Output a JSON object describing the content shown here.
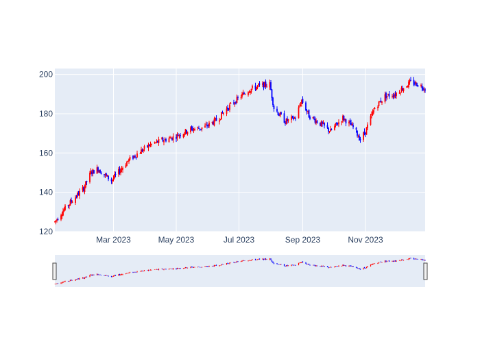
{
  "chart_data": {
    "type": "candlestick",
    "title": "",
    "xlabel": "",
    "ylabel": "",
    "ylim": [
      120,
      203
    ],
    "xlim": [
      "2023-01-03",
      "2023-12-29"
    ],
    "grid": true,
    "has_rangeslider": true,
    "colors": {
      "increasing": "#ff0000",
      "decreasing": "#0000ff",
      "plot_bg": "#e5ecf6",
      "grid": "#ffffff",
      "tick_text": "#2a3f5f",
      "slider_handle_fill": "#f2f2f2",
      "slider_handle_stroke": "#444444"
    },
    "y_ticks": [
      120,
      140,
      160,
      180,
      200
    ],
    "x_ticks": [
      {
        "date": "2023-03-01",
        "label": "Mar 2023"
      },
      {
        "date": "2023-05-01",
        "label": "May 2023"
      },
      {
        "date": "2023-07-01",
        "label": "Jul 2023"
      },
      {
        "date": "2023-09-01",
        "label": "Sep 2023"
      },
      {
        "date": "2023-11-01",
        "label": "Nov 2023"
      }
    ],
    "close_anchors": [
      [
        "2023-01-03",
        125
      ],
      [
        "2023-01-10",
        130
      ],
      [
        "2023-01-20",
        136
      ],
      [
        "2023-01-31",
        142
      ],
      [
        "2023-02-07",
        150
      ],
      [
        "2023-02-14",
        152
      ],
      [
        "2023-02-20",
        149
      ],
      [
        "2023-02-27",
        146
      ],
      [
        "2023-03-07",
        151
      ],
      [
        "2023-03-15",
        156
      ],
      [
        "2023-03-25",
        160
      ],
      [
        "2023-04-05",
        164
      ],
      [
        "2023-04-15",
        166
      ],
      [
        "2023-04-28",
        168
      ],
      [
        "2023-05-15",
        172
      ],
      [
        "2023-05-28",
        173
      ],
      [
        "2023-06-10",
        177
      ],
      [
        "2023-06-20",
        183
      ],
      [
        "2023-07-01",
        188
      ],
      [
        "2023-07-10",
        192
      ],
      [
        "2023-07-20",
        194
      ],
      [
        "2023-07-31",
        195
      ],
      [
        "2023-08-04",
        183
      ],
      [
        "2023-08-15",
        176
      ],
      [
        "2023-08-25",
        178
      ],
      [
        "2023-08-31",
        187
      ],
      [
        "2023-09-07",
        179
      ],
      [
        "2023-09-18",
        175
      ],
      [
        "2023-09-28",
        171
      ],
      [
        "2023-10-10",
        178
      ],
      [
        "2023-10-20",
        173
      ],
      [
        "2023-10-27",
        167
      ],
      [
        "2023-11-01",
        171
      ],
      [
        "2023-11-10",
        183
      ],
      [
        "2023-11-20",
        189
      ],
      [
        "2023-11-30",
        190
      ],
      [
        "2023-12-07",
        193
      ],
      [
        "2023-12-15",
        196
      ],
      [
        "2023-12-22",
        195
      ],
      [
        "2023-12-29",
        193
      ]
    ]
  }
}
